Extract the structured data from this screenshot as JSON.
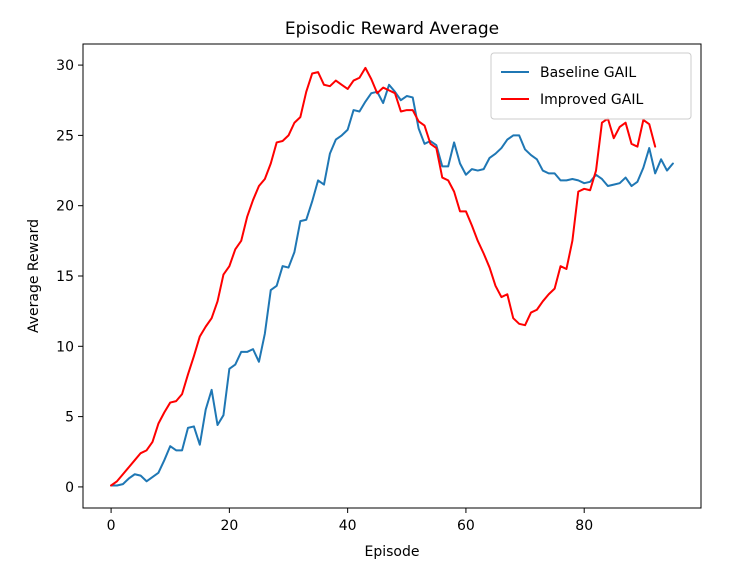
{
  "chart_data": {
    "type": "line",
    "title": "Episodic Reward Average",
    "xlabel": "Episode",
    "ylabel": "Average Reward",
    "xlim": [
      -4.75,
      99.75
    ],
    "ylim": [
      -1.5,
      31.5
    ],
    "xticks": [
      0,
      20,
      40,
      60,
      80
    ],
    "yticks": [
      0,
      5,
      10,
      15,
      20,
      25,
      30
    ],
    "grid": false,
    "legend_position": "top-right",
    "series": [
      {
        "name": "Baseline GAIL",
        "color": "#1f77b4",
        "x": [
          0,
          1,
          2,
          3,
          4,
          5,
          6,
          7,
          8,
          9,
          10,
          11,
          12,
          13,
          14,
          15,
          16,
          17,
          18,
          19,
          20,
          21,
          22,
          23,
          24,
          25,
          26,
          27,
          28,
          29,
          30,
          31,
          32,
          33,
          34,
          35,
          36,
          37,
          38,
          39,
          40,
          41,
          42,
          43,
          44,
          45,
          46,
          47,
          48,
          49,
          50,
          51,
          52,
          53,
          54,
          55,
          56,
          57,
          58,
          59,
          60,
          61,
          62,
          63,
          64,
          65,
          66,
          67,
          68,
          69,
          70,
          71,
          72,
          73,
          74,
          75,
          76,
          77,
          78,
          79,
          80,
          81,
          82,
          83,
          84,
          85,
          86,
          87,
          88,
          89,
          90,
          91,
          92,
          93,
          94,
          95
        ],
        "y": [
          0.1,
          0.1,
          0.2,
          0.6,
          0.9,
          0.8,
          0.4,
          0.7,
          1.0,
          1.9,
          2.9,
          2.6,
          2.6,
          4.2,
          4.3,
          3.0,
          5.5,
          6.9,
          4.4,
          5.1,
          8.4,
          8.7,
          9.6,
          9.6,
          9.8,
          8.9,
          10.9,
          14.0,
          14.3,
          15.7,
          15.6,
          16.7,
          18.9,
          19.0,
          20.3,
          21.8,
          21.5,
          23.7,
          24.7,
          25.0,
          25.4,
          26.8,
          26.7,
          27.4,
          28.0,
          28.1,
          27.3,
          28.6,
          28.1,
          27.5,
          27.8,
          27.7,
          25.5,
          24.4,
          24.6,
          24.3,
          22.8,
          22.8,
          24.5,
          23.0,
          22.2,
          22.6,
          22.5,
          22.6,
          23.4,
          23.7,
          24.1,
          24.7,
          25.0,
          25.0,
          24.0,
          23.6,
          23.3,
          22.5,
          22.3,
          22.3,
          21.8,
          21.8,
          21.9,
          21.8,
          21.6,
          21.7,
          22.2,
          21.9,
          21.4,
          21.5,
          21.6,
          22.0,
          21.4,
          21.7,
          22.7,
          24.1,
          22.3,
          23.3,
          22.5,
          23.0
        ]
      },
      {
        "name": "Improved GAIL",
        "color": "#ff0000",
        "x": [
          0,
          1,
          2,
          3,
          4,
          5,
          6,
          7,
          8,
          9,
          10,
          11,
          12,
          13,
          14,
          15,
          16,
          17,
          18,
          19,
          20,
          21,
          22,
          23,
          24,
          25,
          26,
          27,
          28,
          29,
          30,
          31,
          32,
          33,
          34,
          35,
          36,
          37,
          38,
          39,
          40,
          41,
          42,
          43,
          44,
          45,
          46,
          47,
          48,
          49,
          50,
          51,
          52,
          53,
          54,
          55,
          56,
          57,
          58,
          59,
          60,
          61,
          62,
          63,
          64,
          65,
          66,
          67,
          68,
          69,
          70,
          71,
          72,
          73,
          74,
          75,
          76,
          77,
          78,
          79,
          80,
          81,
          82,
          83,
          84,
          85,
          86,
          87,
          88,
          89,
          90,
          91,
          92
        ],
        "y": [
          0.1,
          0.4,
          0.9,
          1.4,
          1.9,
          2.4,
          2.6,
          3.2,
          4.5,
          5.3,
          6.0,
          6.1,
          6.6,
          8.0,
          9.3,
          10.7,
          11.4,
          12.0,
          13.2,
          15.1,
          15.7,
          16.9,
          17.5,
          19.2,
          20.4,
          21.4,
          21.9,
          23.0,
          24.5,
          24.6,
          25.0,
          25.9,
          26.3,
          28.1,
          29.4,
          29.5,
          28.6,
          28.5,
          28.9,
          28.6,
          28.3,
          28.9,
          29.1,
          29.8,
          29.0,
          28.0,
          28.4,
          28.2,
          28.0,
          26.7,
          26.8,
          26.8,
          26.0,
          25.7,
          24.4,
          24.1,
          22.0,
          21.8,
          21.0,
          19.6,
          19.6,
          18.6,
          17.5,
          16.6,
          15.6,
          14.3,
          13.5,
          13.7,
          12.0,
          11.6,
          11.5,
          12.4,
          12.6,
          13.2,
          13.7,
          14.1,
          15.7,
          15.5,
          17.5,
          21.0,
          21.2,
          21.1,
          22.5,
          25.9,
          26.2,
          24.8,
          25.6,
          25.9,
          24.4,
          24.2,
          26.1,
          25.8,
          24.2
        ]
      }
    ]
  }
}
